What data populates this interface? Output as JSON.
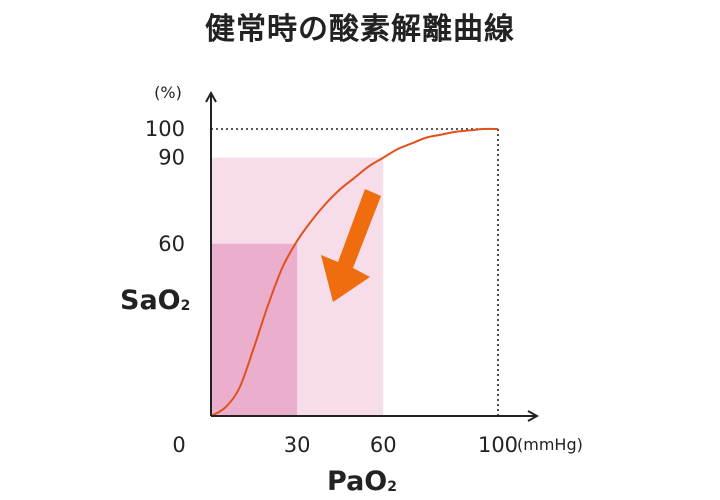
{
  "chart_data": {
    "type": "line",
    "title": "健常時の酸素解離曲線",
    "xlabel": {
      "main": "PaO",
      "sub": "2"
    },
    "ylabel": {
      "main": "SaO",
      "sub": "2"
    },
    "x_unit": "(mmHg)",
    "y_unit": "(%)",
    "xlim": [
      0,
      100
    ],
    "ylim": [
      0,
      100
    ],
    "x_ticks": [
      {
        "value": 0,
        "label": "0"
      },
      {
        "value": 30,
        "label": "30"
      },
      {
        "value": 60,
        "label": "60"
      },
      {
        "value": 100,
        "label": "100"
      }
    ],
    "y_ticks": [
      {
        "value": 100,
        "label": "100"
      },
      {
        "value": 90,
        "label": "90"
      },
      {
        "value": 60,
        "label": "60"
      }
    ],
    "series": [
      {
        "color": "#e0521c",
        "x": [
          0,
          5,
          10,
          15,
          20,
          25,
          30,
          35,
          40,
          45,
          50,
          55,
          60,
          65,
          70,
          75,
          80,
          85,
          90,
          95,
          100
        ],
        "y": [
          0,
          3,
          10,
          24,
          39,
          52,
          61,
          68,
          74,
          79,
          83,
          87,
          90,
          93,
          95,
          97,
          98,
          99,
          99.5,
          100,
          100
        ]
      }
    ],
    "regions": [
      {
        "x": [
          0,
          60
        ],
        "y": [
          0,
          90
        ],
        "color": "#f6dde9"
      },
      {
        "x": [
          0,
          30
        ],
        "y": [
          0,
          60
        ],
        "color": "#ebaecd"
      }
    ],
    "reference_lines": [
      {
        "from": [
          0,
          100
        ],
        "to": [
          100,
          100
        ],
        "style": "dotted"
      },
      {
        "from": [
          100,
          0
        ],
        "to": [
          100,
          100
        ],
        "style": "dotted"
      }
    ],
    "annotations": [
      {
        "type": "arrow",
        "color": "#ef6d0e",
        "direction": "down-left"
      }
    ],
    "grid": false
  }
}
